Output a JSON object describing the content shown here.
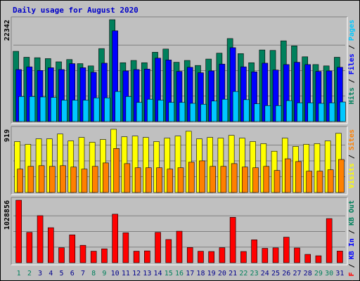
{
  "chart_data": {
    "type": "bar",
    "title": "Daily usage for August 2020",
    "categories": [
      "1",
      "2",
      "3",
      "4",
      "5",
      "6",
      "7",
      "8",
      "9",
      "10",
      "11",
      "12",
      "13",
      "14",
      "15",
      "16",
      "17",
      "18",
      "19",
      "20",
      "21",
      "22",
      "23",
      "24",
      "25",
      "26",
      "27",
      "28",
      "29",
      "30",
      "31"
    ],
    "weekend_days": [
      "1",
      "2",
      "8",
      "9",
      "15",
      "16",
      "22",
      "23",
      "29",
      "30"
    ],
    "colors": {
      "hits": "#00805c",
      "files": "#0000ff",
      "pages": "#00c8ff",
      "visits": "#ffff00",
      "sites": "#ff8000",
      "kb_f": "#ff0000",
      "kb_in": "#0000ff",
      "kb_out": "#00805c",
      "title": "#0000c8",
      "weekday_tick": "#00008b",
      "weekend_tick": "#00805c"
    },
    "panels": [
      {
        "id": "hits-panel",
        "max_label": "22342",
        "ylim": [
          0,
          22342
        ],
        "legend": [
          {
            "text": "Hits",
            "color": "#00805c"
          },
          {
            "text": "Files",
            "color": "#0000ff"
          },
          {
            "text": "Pages",
            "color": "#00c8ff"
          }
        ],
        "series": [
          {
            "name": "Hits",
            "color": "#00805c",
            "values": [
              15400,
              14100,
              14000,
              13800,
              13100,
              13600,
              12700,
              12200,
              16000,
              22342,
              12900,
              13400,
              12900,
              15200,
              15900,
              13000,
              13400,
              12300,
              13700,
              15000,
              18200,
              14900,
              12900,
              15700,
              15600,
              17700,
              16600,
              14200,
              12500,
              12200,
              14100
            ]
          },
          {
            "name": "Files",
            "color": "#0000ff",
            "values": [
              11400,
              12000,
              11200,
              11800,
              11400,
              12700,
              11800,
              10800,
              12800,
              19900,
              11100,
              11400,
              11500,
              13900,
              13500,
              11000,
              11900,
              10700,
              11100,
              12600,
              16200,
              12000,
              10900,
              12800,
              11300,
              12500,
              13000,
              12500,
              11000,
              11100,
              11900
            ]
          },
          {
            "name": "Pages",
            "color": "#00c8ff",
            "values": [
              5500,
              5500,
              5400,
              5300,
              4700,
              4700,
              4700,
              5200,
              5200,
              6600,
              5500,
              4200,
              4900,
              4700,
              4200,
              4200,
              4000,
              3800,
              4500,
              4900,
              6600,
              4800,
              3900,
              3500,
              3500,
              4600,
              4100,
              4100,
              4000,
              4100,
              4300
            ]
          }
        ]
      },
      {
        "id": "visits-panel",
        "max_label": "919",
        "ylim": [
          0,
          919
        ],
        "legend": [
          {
            "text": "Visits",
            "color": "#ffff00"
          },
          {
            "text": "Sites",
            "color": "#ff8000"
          }
        ],
        "series": [
          {
            "name": "Visits",
            "color": "#ffff00",
            "values": [
              740,
              700,
              780,
              780,
              850,
              750,
              800,
              730,
              770,
              919,
              810,
              820,
              800,
              740,
              790,
              820,
              890,
              780,
              800,
              790,
              830,
              790,
              740,
              710,
              600,
              790,
              670,
              700,
              710,
              750,
              860
            ]
          },
          {
            "name": "Sites",
            "color": "#ff8000",
            "values": [
              340,
              380,
              390,
              380,
              390,
              370,
              340,
              380,
              430,
              640,
              420,
              360,
              360,
              360,
              340,
              360,
              440,
              460,
              380,
              380,
              420,
              370,
              360,
              380,
              320,
              490,
              450,
              310,
              310,
              330,
              480
            ]
          }
        ]
      },
      {
        "id": "kbytes-panel",
        "max_label": "1028856",
        "ylim": [
          0,
          1028856
        ],
        "legend": [
          {
            "text": "KB F",
            "color": "#ff0000"
          },
          {
            "text": "KB In",
            "color": "#0000ff"
          },
          {
            "text": "KB Out",
            "color": "#00805c"
          }
        ],
        "series": [
          {
            "name": "KB F",
            "color": "#ff0000",
            "values": [
              1028856,
              500000,
              775000,
              577000,
              247000,
              459000,
              287000,
              190000,
              229000,
              799000,
              493000,
              190000,
              195000,
              500000,
              382000,
              519000,
              250000,
              189000,
              185000,
              248000,
              748000,
              185000,
              378000,
              237000,
              245000,
              421000,
              243000,
              138000,
              115000,
              727000,
              192000
            ]
          }
        ]
      }
    ]
  }
}
